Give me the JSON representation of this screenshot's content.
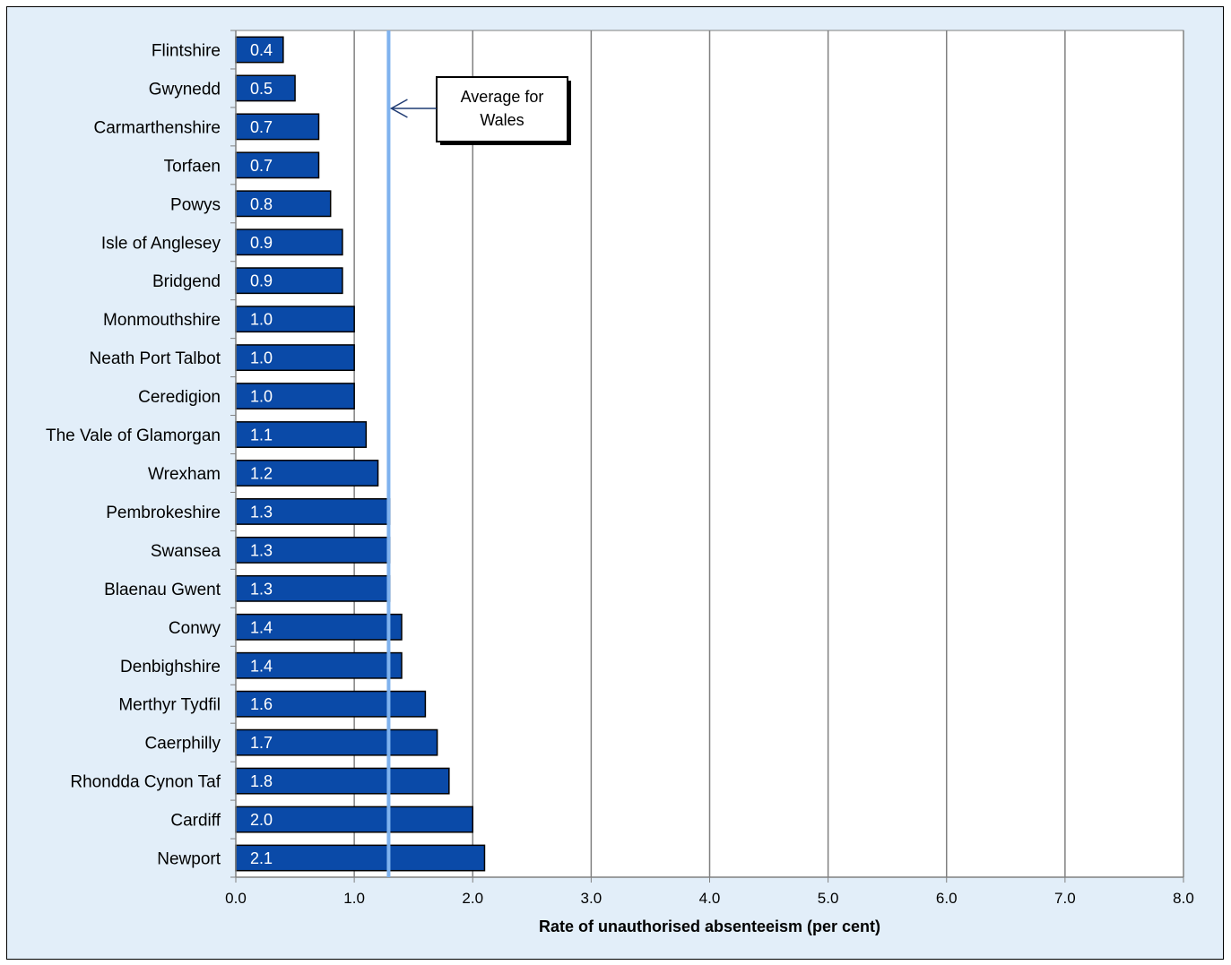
{
  "chart_data": {
    "type": "bar",
    "orientation": "horizontal",
    "title": "",
    "xlabel": "Rate of unauthorised absenteeism (per cent)",
    "ylabel": "",
    "xlim": [
      0,
      8
    ],
    "x_ticks": [
      "0.0",
      "1.0",
      "2.0",
      "3.0",
      "4.0",
      "5.0",
      "6.0",
      "7.0",
      "8.0"
    ],
    "grid": "vertical major gridlines",
    "categories": [
      "Flintshire",
      "Gwynedd",
      "Carmarthenshire",
      "Torfaen",
      "Powys",
      "Isle of Anglesey",
      "Bridgend",
      "Monmouthshire",
      "Neath Port Talbot",
      "Ceredigion",
      "The Vale of Glamorgan",
      "Wrexham",
      "Pembrokeshire",
      "Swansea",
      "Blaenau Gwent",
      "Conwy",
      "Denbighshire",
      "Merthyr Tydfil",
      "Caerphilly",
      "Rhondda Cynon Taf",
      "Cardiff",
      "Newport"
    ],
    "values": [
      0.4,
      0.5,
      0.7,
      0.7,
      0.8,
      0.9,
      0.9,
      1.0,
      1.0,
      1.0,
      1.1,
      1.2,
      1.3,
      1.3,
      1.3,
      1.4,
      1.4,
      1.6,
      1.7,
      1.8,
      2.0,
      2.1
    ],
    "data_labels": [
      "0.4",
      "0.5",
      "0.7",
      "0.7",
      "0.8",
      "0.9",
      "0.9",
      "1.0",
      "1.0",
      "1.0",
      "1.1",
      "1.2",
      "1.3",
      "1.3",
      "1.3",
      "1.4",
      "1.4",
      "1.6",
      "1.7",
      "1.8",
      "2.0",
      "2.1"
    ],
    "reference_line": {
      "value": 1.29,
      "callout_lines": [
        "Average for",
        "Wales"
      ]
    },
    "colors": {
      "bar_fill": "#0a4aa8",
      "bar_stroke": "#000000",
      "reference_line": "#7fb2ee",
      "plot_background": "#ffffff",
      "frame_background": "#e2eef9",
      "gridline": "#808080",
      "callout_arrow": "#1f3b73"
    }
  }
}
